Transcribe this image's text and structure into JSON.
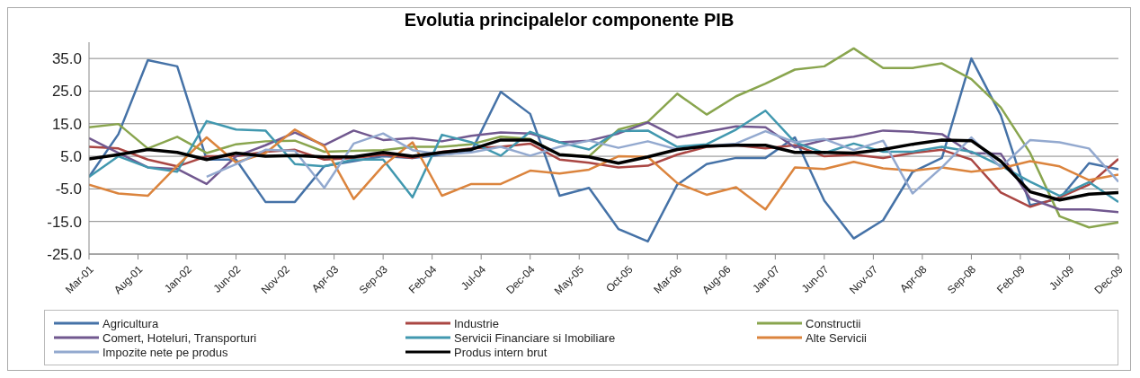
{
  "chart_data": {
    "type": "line",
    "title": "Evolutia principalelor componente PIB",
    "x": [
      "2001-03",
      "2001-06",
      "2001-09",
      "2001-12",
      "2002-03",
      "2002-06",
      "2002-09",
      "2002-12",
      "2003-03",
      "2003-06",
      "2003-09",
      "2003-12",
      "2004-03",
      "2004-06",
      "2004-09",
      "2004-12",
      "2005-03",
      "2005-06",
      "2005-09",
      "2005-12",
      "2006-03",
      "2006-06",
      "2006-09",
      "2006-12",
      "2007-03",
      "2007-06",
      "2007-09",
      "2007-12",
      "2008-03",
      "2008-06",
      "2008-09",
      "2008-12",
      "2009-03",
      "2009-06",
      "2009-09",
      "2009-12"
    ],
    "series": [
      {
        "name": "Agricultura",
        "color": "#4572a7",
        "values": [
          -1.3,
          11.8,
          34.5,
          32.6,
          4,
          4,
          -9,
          -9,
          2,
          3.5,
          5,
          4.5,
          5.5,
          6.5,
          24.8,
          18,
          -7.1,
          -4.7,
          -17.3,
          -21.1,
          -3.7,
          2.6,
          4.5,
          4.5,
          10.8,
          -8.6,
          -20.2,
          -14.6,
          0.2,
          4.5,
          35,
          17.6,
          -10,
          -8,
          2.9,
          1
        ]
      },
      {
        "name": "Industrie",
        "color": "#aa4643",
        "values": [
          7.9,
          7.4,
          4,
          1.9,
          5,
          5,
          6.4,
          7,
          4,
          4.5,
          5.5,
          4.5,
          6.4,
          7.4,
          7.9,
          8.9,
          4,
          3,
          1.6,
          2.1,
          5.5,
          7.9,
          8.4,
          7.4,
          8.4,
          5,
          5.5,
          4.5,
          6,
          7,
          4,
          -6.1,
          -10.5,
          -7.6,
          -3.7,
          4.2
        ]
      },
      {
        "name": "Constructii",
        "color": "#89a54e",
        "values": [
          13.9,
          14.9,
          7.4,
          11,
          6,
          8.7,
          9.6,
          9.8,
          6.4,
          6.7,
          6.9,
          7.9,
          7.9,
          8.7,
          11,
          10.3,
          5.5,
          5,
          13.2,
          15.6,
          24.2,
          17.8,
          23.4,
          27.3,
          31.6,
          32.6,
          38.1,
          32.1,
          32.1,
          33.5,
          28.7,
          20,
          6,
          -13.4,
          -16.8,
          -15.3
        ]
      },
      {
        "name": "Comert, Hoteluri, Transporturi",
        "color": "#71588f",
        "values": [
          10.6,
          6,
          1.6,
          1.1,
          -3.5,
          5,
          8.4,
          12.3,
          8.4,
          12.9,
          10,
          10.6,
          9.6,
          11.3,
          12.3,
          12,
          9.3,
          9.8,
          12,
          15.4,
          10.8,
          12.5,
          14.2,
          13.9,
          7.7,
          10,
          11,
          12.9,
          12.5,
          11.8,
          6,
          5.8,
          -8,
          -11.3,
          -11.3,
          -12.1
        ]
      },
      {
        "name": "Servicii Financiare si Imobiliare",
        "color": "#4198af",
        "values": [
          -1.3,
          5,
          1.6,
          0.3,
          15.8,
          13.2,
          12.9,
          2.6,
          1.9,
          4,
          4,
          -7.6,
          11.6,
          9.3,
          5.2,
          12.5,
          9.3,
          7.1,
          12.7,
          12.9,
          7.9,
          8.7,
          13.2,
          19,
          9.3,
          6,
          8.9,
          6.4,
          6.4,
          7.9,
          6.4,
          2.1,
          -2.8,
          -7.1,
          -2.9,
          -9
        ]
      },
      {
        "name": "Alte Servicii",
        "color": "#db843d",
        "values": [
          -3.7,
          -6.4,
          -7.1,
          2.1,
          10.8,
          3.1,
          6,
          13.2,
          8.1,
          -8.1,
          2.1,
          9.3,
          -7.1,
          -3.5,
          -3.5,
          0.6,
          -0.3,
          0.9,
          5,
          4.8,
          -3.2,
          -6.8,
          -4.5,
          -11.3,
          1.6,
          1.1,
          3.3,
          1.3,
          0.6,
          1.6,
          0.3,
          1.3,
          3.5,
          1.9,
          -2.3,
          -0.6
        ]
      },
      {
        "name": "Impozite nete pe produs",
        "color": "#93a9cf",
        "values": [
          null,
          null,
          null,
          null,
          -1.3,
          2.6,
          7,
          6.7,
          -4.7,
          8.9,
          12,
          6.9,
          5.5,
          6.2,
          7.9,
          5.2,
          7.9,
          9.8,
          7.6,
          9.6,
          7.1,
          8.1,
          8.9,
          12.7,
          9.3,
          10.3,
          6.9,
          9.8,
          -6.4,
          1.6,
          10.8,
          1.6,
          10,
          9.3,
          7.4,
          -2.8
        ]
      },
      {
        "name": "Produs intern brut",
        "color": "#000000",
        "values": [
          4.2,
          5.5,
          7.1,
          6.2,
          4,
          6,
          5,
          5.2,
          4.8,
          4.8,
          6.2,
          5,
          6.2,
          7.1,
          10,
          10,
          5.5,
          4.8,
          2.9,
          4.8,
          7.1,
          8.1,
          8.4,
          8.4,
          6.2,
          6.2,
          6,
          7.1,
          8.7,
          10,
          9.8,
          3.5,
          -5.9,
          -8.4,
          -6.6,
          -6.1
        ]
      }
    ],
    "xlim": [
      "2001-03",
      "2009-12"
    ],
    "xticks": [
      {
        "value": "2001-03",
        "label": "Mar-01"
      },
      {
        "value": "2001-08",
        "label": "Aug-01"
      },
      {
        "value": "2002-01",
        "label": "Jan-02"
      },
      {
        "value": "2002-06",
        "label": "Jun-02"
      },
      {
        "value": "2002-11",
        "label": "Nov-02"
      },
      {
        "value": "2003-04",
        "label": "Apr-03"
      },
      {
        "value": "2003-09",
        "label": "Sep-03"
      },
      {
        "value": "2004-02",
        "label": "Feb-04"
      },
      {
        "value": "2004-07",
        "label": "Jul-04"
      },
      {
        "value": "2004-12",
        "label": "Dec-04"
      },
      {
        "value": "2005-05",
        "label": "May-05"
      },
      {
        "value": "2005-10",
        "label": "Oct-05"
      },
      {
        "value": "2006-03",
        "label": "Mar-06"
      },
      {
        "value": "2006-08",
        "label": "Aug-06"
      },
      {
        "value": "2007-01",
        "label": "Jan-07"
      },
      {
        "value": "2007-06",
        "label": "Jun-07"
      },
      {
        "value": "2007-11",
        "label": "Nov-07"
      },
      {
        "value": "2008-04",
        "label": "Apr-08"
      },
      {
        "value": "2008-09",
        "label": "Sep-08"
      },
      {
        "value": "2009-02",
        "label": "Feb-09"
      },
      {
        "value": "2009-07",
        "label": "Jul-09"
      },
      {
        "value": "2009-12",
        "label": "Dec-09"
      }
    ],
    "ylim": [
      -25,
      40
    ],
    "yticks": [
      {
        "value": -25,
        "label": "-25.0"
      },
      {
        "value": -15,
        "label": "-15.0"
      },
      {
        "value": -5,
        "label": "-5.0"
      },
      {
        "value": 5,
        "label": "5.0"
      },
      {
        "value": 15,
        "label": "15.0"
      },
      {
        "value": 25,
        "label": "25.0"
      },
      {
        "value": 35,
        "label": "35.0"
      }
    ],
    "grid": "y",
    "legend": "bottom",
    "marker": "none",
    "line_style": "solid"
  }
}
